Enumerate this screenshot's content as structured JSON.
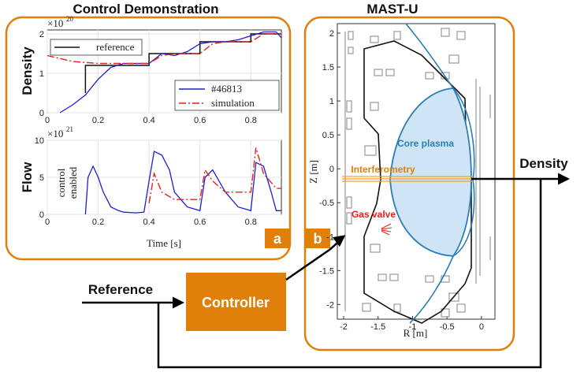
{
  "panels": {
    "left_title": "Control Demonstration",
    "right_title": "MAST-U",
    "badge_a": "a",
    "badge_b": "b"
  },
  "density_plot": {
    "ylabel": "Density",
    "exponent": "×10",
    "exponent_power": "20",
    "yticks": [
      "0",
      "1",
      "2"
    ],
    "xticks": [
      "0",
      "0.2",
      "0.4",
      "0.6",
      "0.8"
    ],
    "legend_reference": "reference",
    "legend_shot": "#46813",
    "legend_simulation": "simulation"
  },
  "flow_plot": {
    "ylabel": "Flow",
    "exponent": "×10",
    "exponent_power": "21",
    "yticks": [
      "0",
      "5",
      "10"
    ],
    "xticks": [
      "0",
      "0.2",
      "0.4",
      "0.6",
      "0.8"
    ],
    "xlabel": "Time [s]",
    "annotation_line1": "control",
    "annotation_line2": "enabled"
  },
  "machine_plot": {
    "xlabel": "R [m]",
    "ylabel": "Z [m]",
    "xticks": [
      "-2",
      "-1.5",
      "-1",
      "-0.5",
      "0"
    ],
    "yticks": [
      "2",
      "1.5",
      "1",
      "0.5",
      "0",
      "-0.5",
      "-1",
      "-1.5",
      "-2"
    ],
    "label_core": "Core plasma",
    "label_interferometry": "Interferometry",
    "label_gas": "Gas valve"
  },
  "block_diagram": {
    "controller": "Controller",
    "reference": "Reference",
    "density": "Density"
  },
  "colors": {
    "orange": "#E07F0A",
    "blue": "#1F1FCC",
    "red": "#E8211C",
    "plasma_fill": "#CFE5F5",
    "plasma_line": "#2A7DB8"
  },
  "chart_data": [
    {
      "type": "line",
      "ylabel": "Density",
      "ylim": [
        0,
        2.1e+20
      ],
      "xlim": [
        0,
        0.92
      ],
      "series": [
        {
          "name": "reference",
          "x": [
            0.15,
            0.15,
            0.4,
            0.4,
            0.6,
            0.6,
            0.8,
            0.8,
            0.92
          ],
          "y": [
            5e+19,
            1.2e+20,
            1.2e+20,
            1.5e+20,
            1.5e+20,
            1.8e+20,
            1.8e+20,
            2e+20,
            2e+20
          ]
        },
        {
          "name": "#46813",
          "x": [
            0.05,
            0.1,
            0.15,
            0.2,
            0.25,
            0.3,
            0.35,
            0.4,
            0.45,
            0.5,
            0.55,
            0.6,
            0.65,
            0.7,
            0.75,
            0.8,
            0.85,
            0.9,
            0.92
          ],
          "y": [
            0.0,
            2e+19,
            4.5e+19,
            8.5e+19,
            1.15e+20,
            1.25e+20,
            1.25e+20,
            1.25e+20,
            1.5e+20,
            1.45e+20,
            1.55e+20,
            1.75e+20,
            1.8e+20,
            1.8e+20,
            1.85e+20,
            1.95e+20,
            2.05e+20,
            2.05e+20,
            1.9e+20
          ]
        },
        {
          "name": "simulation",
          "x": [
            0.0,
            0.1,
            0.2,
            0.3,
            0.4,
            0.45,
            0.5,
            0.6,
            0.65,
            0.7,
            0.8,
            0.85,
            0.92
          ],
          "y": [
            1.45e+20,
            1.3e+20,
            1.25e+20,
            1.25e+20,
            1.25e+20,
            1.45e+20,
            1.5e+20,
            1.5e+20,
            1.75e+20,
            1.8e+20,
            1.8e+20,
            2e+20,
            2e+20
          ]
        }
      ]
    },
    {
      "type": "line",
      "ylabel": "Flow",
      "xlabel": "Time [s]",
      "ylim": [
        0,
        1e+22
      ],
      "xlim": [
        0,
        0.92
      ],
      "series": [
        {
          "name": "#46813",
          "x": [
            0.15,
            0.16,
            0.18,
            0.2,
            0.22,
            0.25,
            0.28,
            0.3,
            0.35,
            0.38,
            0.4,
            0.42,
            0.45,
            0.48,
            0.5,
            0.55,
            0.6,
            0.62,
            0.65,
            0.7,
            0.75,
            0.8,
            0.82,
            0.85,
            0.88,
            0.9,
            0.92
          ],
          "y": [
            0.0,
            5e+21,
            6.5e+21,
            5e+21,
            3e+21,
            1e+21,
            5e+20,
            3e+20,
            2e+20,
            3e+20,
            4.5e+21,
            8.5e+21,
            8e+21,
            6e+21,
            3e+21,
            1e+21,
            5e+20,
            5e+21,
            6e+21,
            3e+21,
            1e+21,
            5e+20,
            7e+21,
            6.5e+21,
            3e+21,
            5e+20,
            5e+20
          ]
        },
        {
          "name": "simulation",
          "x": [
            0.4,
            0.42,
            0.45,
            0.5,
            0.55,
            0.6,
            0.62,
            0.65,
            0.7,
            0.75,
            0.8,
            0.82,
            0.85,
            0.9,
            0.92
          ],
          "y": [
            1.5e+21,
            5.5e+21,
            3e+21,
            2e+21,
            2e+21,
            2e+21,
            6e+21,
            4.5e+21,
            3e+21,
            3e+21,
            3e+21,
            9e+21,
            5.5e+21,
            3.5e+21,
            3.5e+21
          ]
        }
      ]
    }
  ]
}
